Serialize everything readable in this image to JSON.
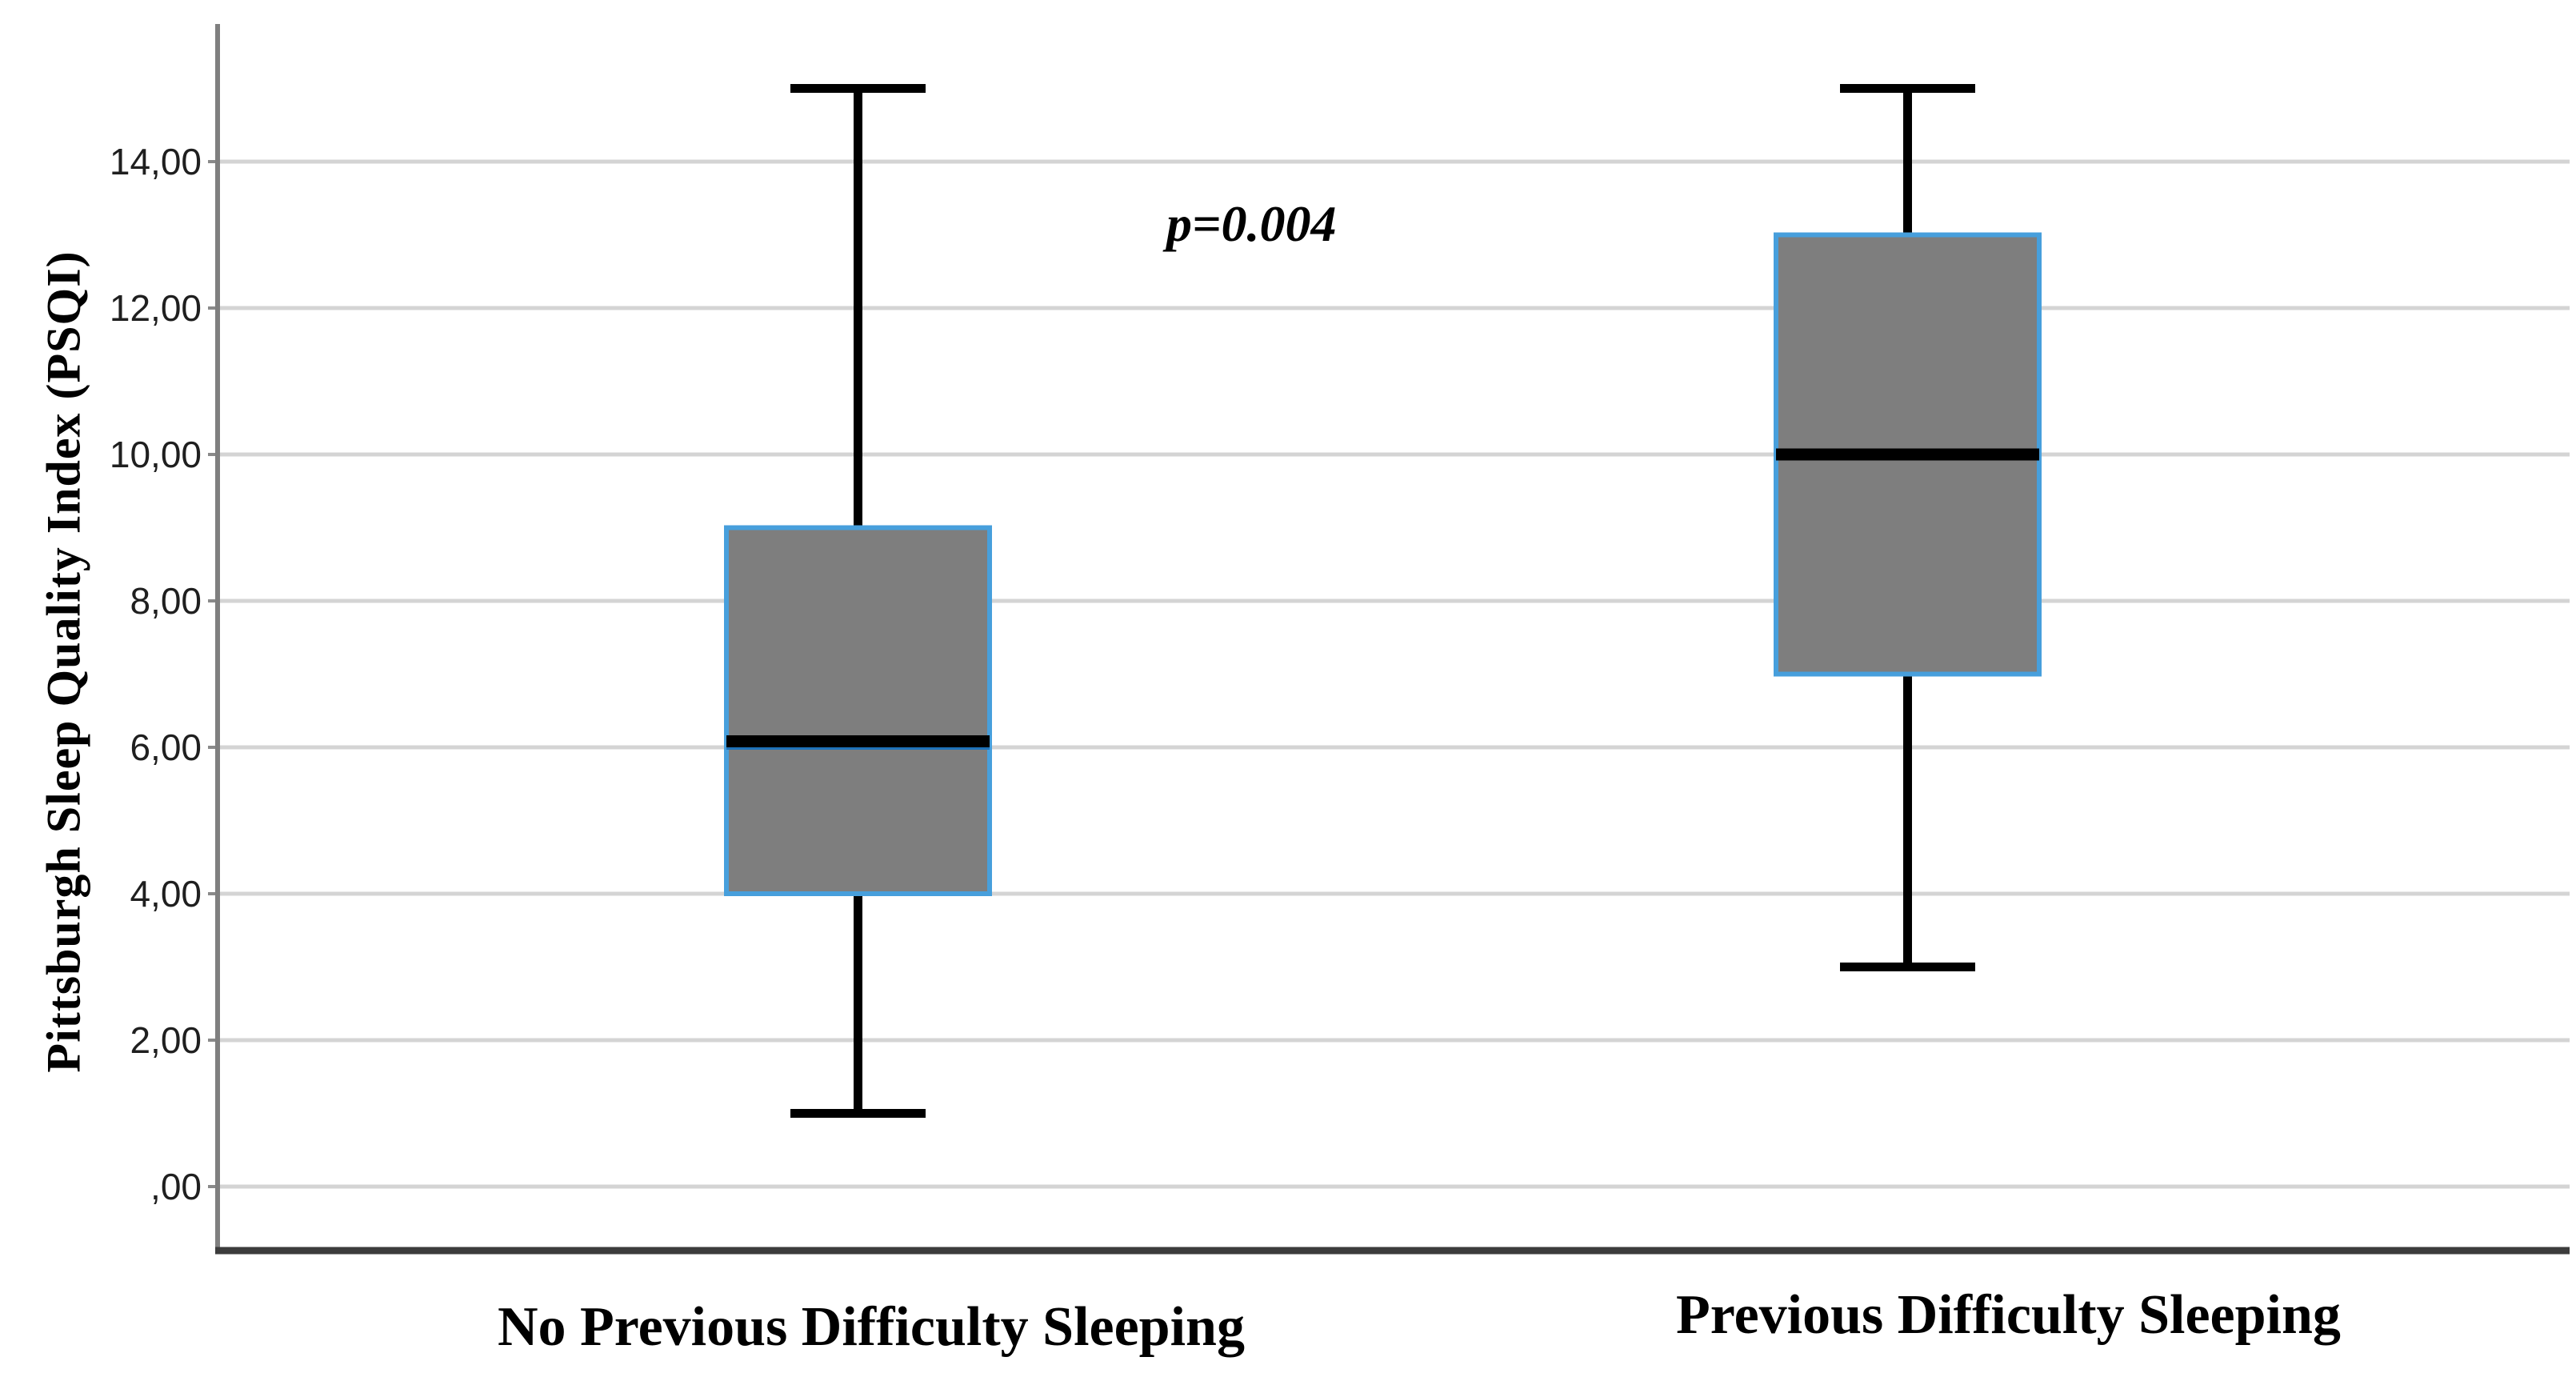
{
  "chart_data": {
    "type": "box",
    "title": "",
    "ylabel": "Pittsburgh Sleep Quality Index (PSQI)",
    "xlabel": "",
    "ylim": [
      -0.9,
      15.8
    ],
    "grid": "horizontal",
    "legend": "none",
    "y_ticks": [
      {
        "value": 0,
        "label": ",00"
      },
      {
        "value": 2,
        "label": "2,00"
      },
      {
        "value": 4,
        "label": "4,00"
      },
      {
        "value": 6,
        "label": "6,00"
      },
      {
        "value": 8,
        "label": "8,00"
      },
      {
        "value": 10,
        "label": "10,00"
      },
      {
        "value": 12,
        "label": "12,00"
      },
      {
        "value": 14,
        "label": "14,00"
      }
    ],
    "categories": [
      "No Previous Difficulty Sleeping",
      "Previous Difficulty Sleeping"
    ],
    "series": [
      {
        "name": "No Previous Difficulty Sleeping",
        "min": 1,
        "q1": 4,
        "median": 6,
        "q3": 9,
        "max": 15
      },
      {
        "name": "Previous Difficulty Sleeping",
        "min": 3,
        "q1": 7,
        "median": 10,
        "q3": 13,
        "max": 15
      }
    ],
    "annotation": {
      "text": "p=0.004"
    },
    "colors": {
      "box_fill": "#7e7e7e",
      "box_border": "#479fdc",
      "median_line": "#000000",
      "median_underline": "#1f72b8",
      "whisker": "#000000",
      "gridline": "#d4d4d4",
      "y_axis_line": "#7f7f7f",
      "x_axis_line": "#3c3c3c",
      "tick_text": "#1f1f1f",
      "background": "#ffffff"
    }
  }
}
